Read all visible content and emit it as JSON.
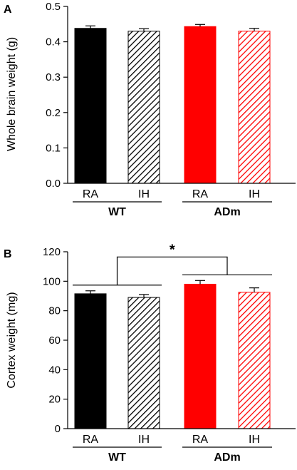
{
  "chart_data": [
    {
      "type": "bar",
      "panel_label": "A",
      "ylabel": "Whole brain weight (g)",
      "ylim": [
        0,
        0.5
      ],
      "yticks": [
        "0.0",
        "0.1",
        "0.2",
        "0.3",
        "0.4",
        "0.5"
      ],
      "categories": [
        "RA",
        "IH",
        "RA",
        "IH"
      ],
      "groups": [
        {
          "label": "WT",
          "bars": [
            0,
            1
          ]
        },
        {
          "label": "ADm",
          "bars": [
            2,
            3
          ]
        }
      ],
      "values": [
        0.438,
        0.43,
        0.443,
        0.43
      ],
      "errors": [
        0.007,
        0.007,
        0.006,
        0.008
      ],
      "hatched": [
        false,
        true,
        false,
        true
      ],
      "colors": [
        "#000000",
        "#000000",
        "#ff0000",
        "#ff0000"
      ]
    },
    {
      "type": "bar",
      "panel_label": "B",
      "ylabel": "Cortex weight (mg)",
      "ylim": [
        0,
        120
      ],
      "yticks": [
        "0",
        "20",
        "40",
        "60",
        "80",
        "100",
        "120"
      ],
      "categories": [
        "RA",
        "IH",
        "RA",
        "IH"
      ],
      "groups": [
        {
          "label": "WT",
          "bars": [
            0,
            1
          ]
        },
        {
          "label": "ADm",
          "bars": [
            2,
            3
          ]
        }
      ],
      "values": [
        91.5,
        89.0,
        98.0,
        92.5
      ],
      "errors": [
        2.0,
        2.0,
        2.5,
        3.0
      ],
      "hatched": [
        false,
        true,
        false,
        true
      ],
      "colors": [
        "#000000",
        "#000000",
        "#ff0000",
        "#ff0000"
      ],
      "significance": "*"
    }
  ]
}
